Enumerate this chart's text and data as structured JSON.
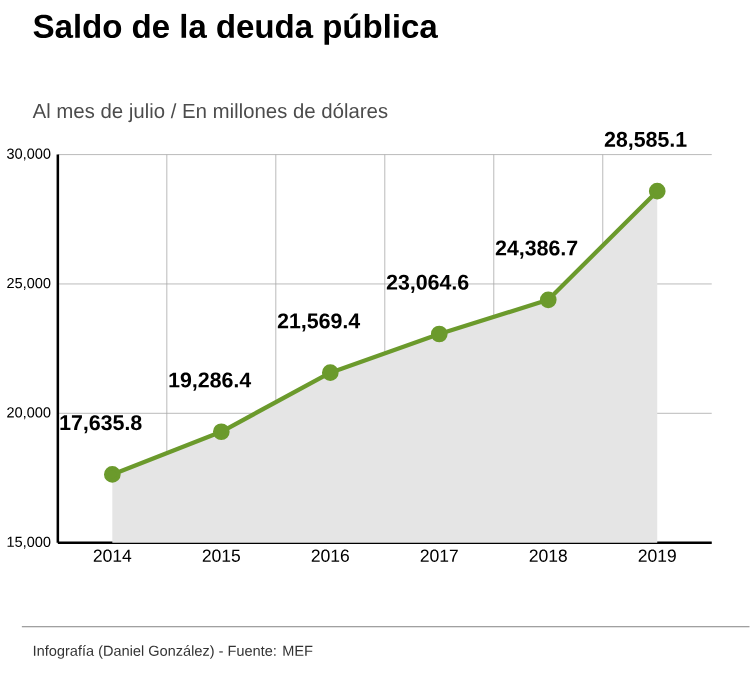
{
  "chart_data": {
    "type": "area",
    "title": "Saldo de la deuda pública",
    "subtitle": "Al mes de julio / En millones de dólares",
    "categories": [
      "2014",
      "2015",
      "2016",
      "2017",
      "2018",
      "2019"
    ],
    "series": [
      {
        "color": "#6b9a2c",
        "values": [
          17635.8,
          19286.4,
          21569.4,
          23064.6,
          24386.7,
          28585.1
        ],
        "value_labels": [
          "17,635.8",
          "19,286.4",
          "21,569.4",
          "23,064.6",
          "24,386.7",
          "28,585.1"
        ]
      }
    ],
    "ylim": [
      15000,
      30000
    ],
    "yticks": [
      {
        "value": 15000,
        "label": "15,000"
      },
      {
        "value": 20000,
        "label": "20,000"
      },
      {
        "value": 25000,
        "label": "25,000"
      },
      {
        "value": 30000,
        "label": "30,000"
      }
    ],
    "grid": true,
    "marker": "circle",
    "line_style": "solid",
    "annotations": [
      "Infografía (Daniel González) - Fuente: MEF"
    ]
  }
}
